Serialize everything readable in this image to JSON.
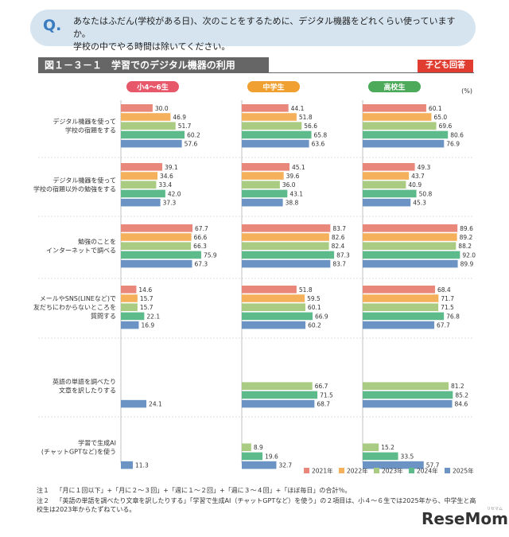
{
  "question": {
    "mark": "Q.",
    "line1": "あなたはふだん(学校がある日)、次のことをするために、デジタル機器をどれくらい使っていますか。",
    "line2": "学校の中でやる時間は除いてください。"
  },
  "figure_title": "図１－３－１　学習でのデジタル機器の利用",
  "badge": "子ども回答",
  "percent_label": "(%)",
  "chart_data": {
    "type": "bar",
    "orientation": "horizontal",
    "title": "図１－３－１　学習でのデジタル機器の利用",
    "unit": "%",
    "groups": [
      "小4～6生",
      "中学生",
      "高校生"
    ],
    "group_colors": [
      "#e8586b",
      "#f0a030",
      "#4caa5a"
    ],
    "categories": [
      [
        "デジタル機器を使って",
        "学校の宿題をする"
      ],
      [
        "デジタル機器を使って",
        "学校の宿題以外の勉強をする"
      ],
      [
        "勉強のことを",
        "インターネットで調べる"
      ],
      [
        "メールやSNS(LINEなど)で",
        "友だちにわからないところを",
        "質問する"
      ],
      [
        "英語の単語を調べたり",
        "文章を訳したりする"
      ],
      [
        "学習で生成AI",
        "(チャットGPTなど)を使う"
      ]
    ],
    "series": [
      {
        "name": "2021年",
        "color": "#e8877a"
      },
      {
        "name": "2022年",
        "color": "#f5b05c"
      },
      {
        "name": "2023年",
        "color": "#a9cc82"
      },
      {
        "name": "2024年",
        "color": "#5dba8a"
      },
      {
        "name": "2025年",
        "color": "#6b93c4"
      }
    ],
    "values": [
      [
        [
          30.0,
          46.9,
          51.7,
          60.2,
          57.6
        ],
        [
          44.1,
          51.8,
          56.6,
          65.8,
          63.6
        ],
        [
          60.1,
          65.0,
          69.6,
          80.6,
          76.9
        ]
      ],
      [
        [
          39.1,
          34.6,
          33.4,
          42.0,
          37.3
        ],
        [
          45.1,
          39.6,
          36.0,
          43.1,
          38.8
        ],
        [
          49.3,
          43.7,
          40.9,
          50.8,
          45.3
        ]
      ],
      [
        [
          67.7,
          66.6,
          66.3,
          75.9,
          67.3
        ],
        [
          83.7,
          82.6,
          82.4,
          87.3,
          83.7
        ],
        [
          89.6,
          89.2,
          88.2,
          92.0,
          89.9
        ]
      ],
      [
        [
          14.6,
          15.7,
          15.7,
          22.1,
          16.9
        ],
        [
          51.8,
          59.5,
          60.1,
          66.9,
          60.2
        ],
        [
          68.4,
          71.7,
          71.5,
          76.8,
          67.7
        ]
      ],
      [
        [
          null,
          null,
          null,
          null,
          24.1
        ],
        [
          null,
          null,
          66.7,
          71.5,
          68.7
        ],
        [
          null,
          null,
          81.2,
          85.2,
          84.6
        ]
      ],
      [
        [
          null,
          null,
          null,
          null,
          11.3
        ],
        [
          null,
          null,
          8.9,
          19.6,
          32.7
        ],
        [
          null,
          null,
          15.2,
          33.5,
          57.7
        ]
      ]
    ],
    "xlim": [
      0,
      100
    ]
  },
  "notes": [
    {
      "label": "注１",
      "text": "「月に１回以下」+「月に２～３回」+「週に１～２回」+「週に３～４回」+「ほぼ毎日」の合計％。"
    },
    {
      "label": "注２",
      "text": "「英語の単語を調べたり文章を訳したりする」「学習で生成AI（チャットGPTなど）を使う」の２項目は、小４～６生では2025年から、中学生と高校生は",
      "text2": "2023年からたずねている。"
    }
  ],
  "logo": {
    "part1": "Rese",
    "part2": "Mom",
    "ruby": "リセマム"
  }
}
